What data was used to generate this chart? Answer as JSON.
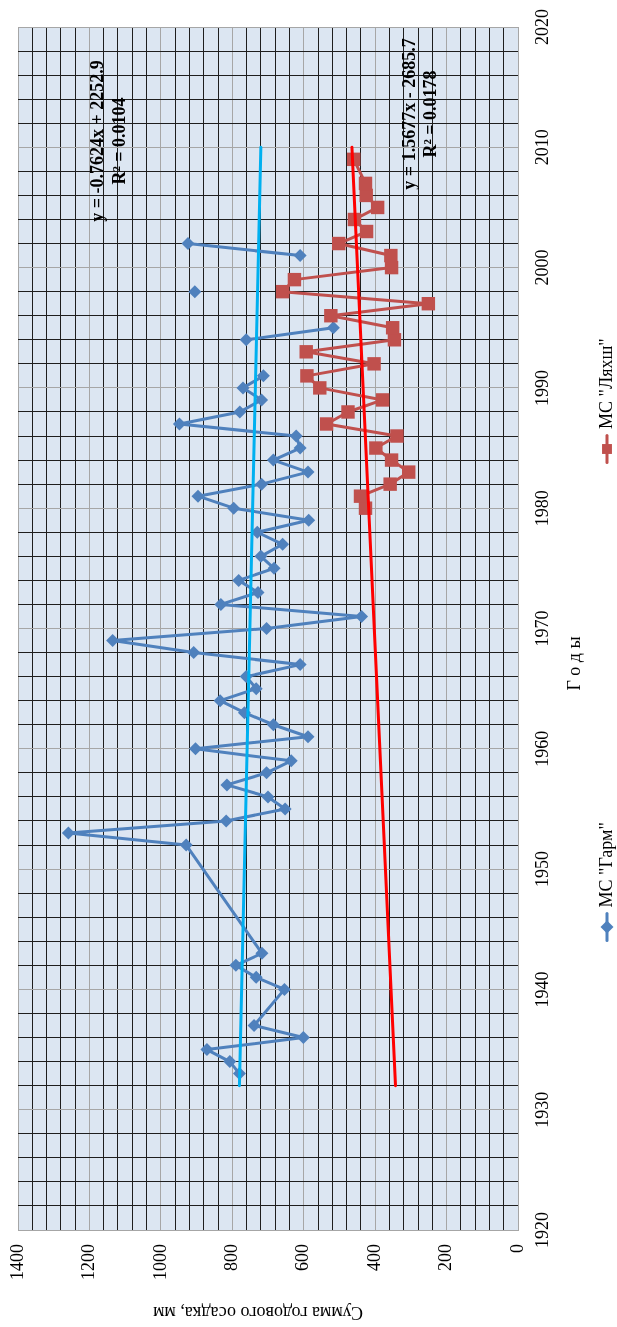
{
  "chart_data": {
    "type": "line",
    "xlabel": "Сумма годового осадка, мм",
    "ylabel": "Г о д ы",
    "xlim": [
      1400,
      0
    ],
    "xticks": [
      0,
      {
        "value": 40,
        "label": null
      },
      {
        "value": 80,
        "label": null
      },
      {
        "value": 120,
        "label": null
      },
      {
        "value": 160,
        "label": null
      },
      200,
      {
        "value": 240,
        "label": null
      },
      {
        "value": 280,
        "label": null
      },
      {
        "value": 320,
        "label": null
      },
      {
        "value": 360,
        "label": null
      },
      400,
      {
        "value": 440,
        "label": null
      },
      {
        "value": 480,
        "label": null
      },
      {
        "value": 520,
        "label": null
      },
      {
        "value": 560,
        "label": null
      },
      600,
      {
        "value": 640,
        "label": null
      },
      {
        "value": 680,
        "label": null
      },
      {
        "value": 720,
        "label": null
      },
      {
        "value": 760,
        "label": null
      },
      800,
      {
        "value": 840,
        "label": null
      },
      {
        "value": 880,
        "label": null
      },
      {
        "value": 920,
        "label": null
      },
      {
        "value": 960,
        "label": null
      },
      1000,
      {
        "value": 1040,
        "label": null
      },
      {
        "value": 1080,
        "label": null
      },
      {
        "value": 1120,
        "label": null
      },
      {
        "value": 1160,
        "label": null
      },
      1200,
      {
        "value": 1240,
        "label": null
      },
      {
        "value": 1280,
        "label": null
      },
      {
        "value": 1320,
        "label": null
      },
      {
        "value": 1360,
        "label": null
      },
      1400
    ],
    "ylim": [
      1920,
      2020
    ],
    "yticks": [
      1920,
      {
        "value": 1922,
        "label": null
      },
      {
        "value": 1924,
        "label": null
      },
      {
        "value": 1926,
        "label": null
      },
      {
        "value": 1928,
        "label": null
      },
      1930,
      {
        "value": 1932,
        "label": null
      },
      {
        "value": 1934,
        "label": null
      },
      {
        "value": 1936,
        "label": null
      },
      {
        "value": 1938,
        "label": null
      },
      1940,
      {
        "value": 1942,
        "label": null
      },
      {
        "value": 1944,
        "label": null
      },
      {
        "value": 1946,
        "label": null
      },
      {
        "value": 1948,
        "label": null
      },
      1950,
      {
        "value": 1952,
        "label": null
      },
      {
        "value": 1954,
        "label": null
      },
      {
        "value": 1956,
        "label": null
      },
      {
        "value": 1958,
        "label": null
      },
      1960,
      {
        "value": 1962,
        "label": null
      },
      {
        "value": 1964,
        "label": null
      },
      {
        "value": 1966,
        "label": null
      },
      {
        "value": 1968,
        "label": null
      },
      1970,
      {
        "value": 1972,
        "label": null
      },
      {
        "value": 1974,
        "label": null
      },
      {
        "value": 1976,
        "label": null
      },
      {
        "value": 1978,
        "label": null
      },
      1980,
      {
        "value": 1982,
        "label": null
      },
      {
        "value": 1984,
        "label": null
      },
      {
        "value": 1986,
        "label": null
      },
      {
        "value": 1988,
        "label": null
      },
      1990,
      {
        "value": 1992,
        "label": null
      },
      {
        "value": 1994,
        "label": null
      },
      {
        "value": 1996,
        "label": null
      },
      {
        "value": 1998,
        "label": null
      },
      2000,
      {
        "value": 2002,
        "label": null
      },
      {
        "value": 2004,
        "label": null
      },
      {
        "value": 2006,
        "label": null
      },
      {
        "value": 2008,
        "label": null
      },
      2010,
      {
        "value": 2012,
        "label": null
      },
      {
        "value": 2014,
        "label": null
      },
      {
        "value": 2016,
        "label": null
      },
      {
        "value": 2018,
        "label": null
      },
      2020
    ],
    "grid": true,
    "legend": "right",
    "series": [
      {
        "name": "МС \"Гарм\"",
        "color": "#4f81bd",
        "marker": "diamond",
        "x": [
          780,
          807,
          871,
          601,
          739,
          654,
          733,
          790,
          717,
          929,
          1259,
          817,
          652,
          700,
          815,
          704,
          635,
          903,
          588,
          685,
          766,
          834,
          733,
          761,
          610,
          908,
          1135,
          704,
          438,
          832,
          728,
          782,
          683,
          720,
          659,
          730,
          586,
          796,
          896,
          718,
          588,
          685,
          610,
          621,
          948,
          779,
          718,
          770,
          713,
          null,
          761,
          517,
          null,
          905,
          null,
          610,
          924
        ],
        "values": [
          1933,
          1934,
          1935,
          1936,
          1937,
          1940,
          1941,
          1942,
          1943,
          1952,
          1953,
          1954,
          1955,
          1956,
          1957,
          1958,
          1959,
          1960,
          1961,
          1962,
          1963,
          1964,
          1965,
          1966,
          1967,
          1968,
          1969,
          1970,
          1971,
          1972,
          1973,
          1974,
          1975,
          1976,
          1977,
          1978,
          1979,
          1980,
          1981,
          1982,
          1983,
          1984,
          1985,
          1986,
          1987,
          1988,
          1989,
          1990,
          1991,
          null,
          1994,
          1995,
          null,
          1998,
          null,
          2001,
          2002
        ]
      },
      {
        "name": "МС \"Ляхш\"",
        "color": "#c0504d",
        "marker": "square",
        "x": [
          427,
          441,
          358,
          306,
          354,
          398,
          339,
          536,
          476,
          379,
          555,
          591,
          403,
          593,
          346,
          351,
          524,
          251,
          659,
          626,
          354,
          356,
          502,
          424,
          458,
          393,
          425,
          427,
          460
        ],
        "values": [
          1980,
          1981,
          1982,
          1983,
          1984,
          1985,
          1986,
          1987,
          1988,
          1989,
          1990,
          1991,
          1992,
          1993,
          1994,
          1995,
          1996,
          1997,
          1998,
          1999,
          2000,
          2001,
          2002,
          2003,
          2004,
          2005,
          2006,
          2007,
          2009
        ]
      },
      {
        "color": "#00b0f0",
        "marker": "none",
        "x": [
          780,
          720
        ],
        "values": [
          1932,
          2010
        ]
      },
      {
        "color": "#ff0000",
        "marker": "none",
        "x": [
          343,
          465
        ],
        "values": [
          1932,
          2010
        ]
      }
    ],
    "annotations": [
      "y = -0.7624x + 2252.9",
      "R² = 0.0104",
      "y = 1.5677x - 2685.7",
      "R² = 0.0178"
    ]
  }
}
